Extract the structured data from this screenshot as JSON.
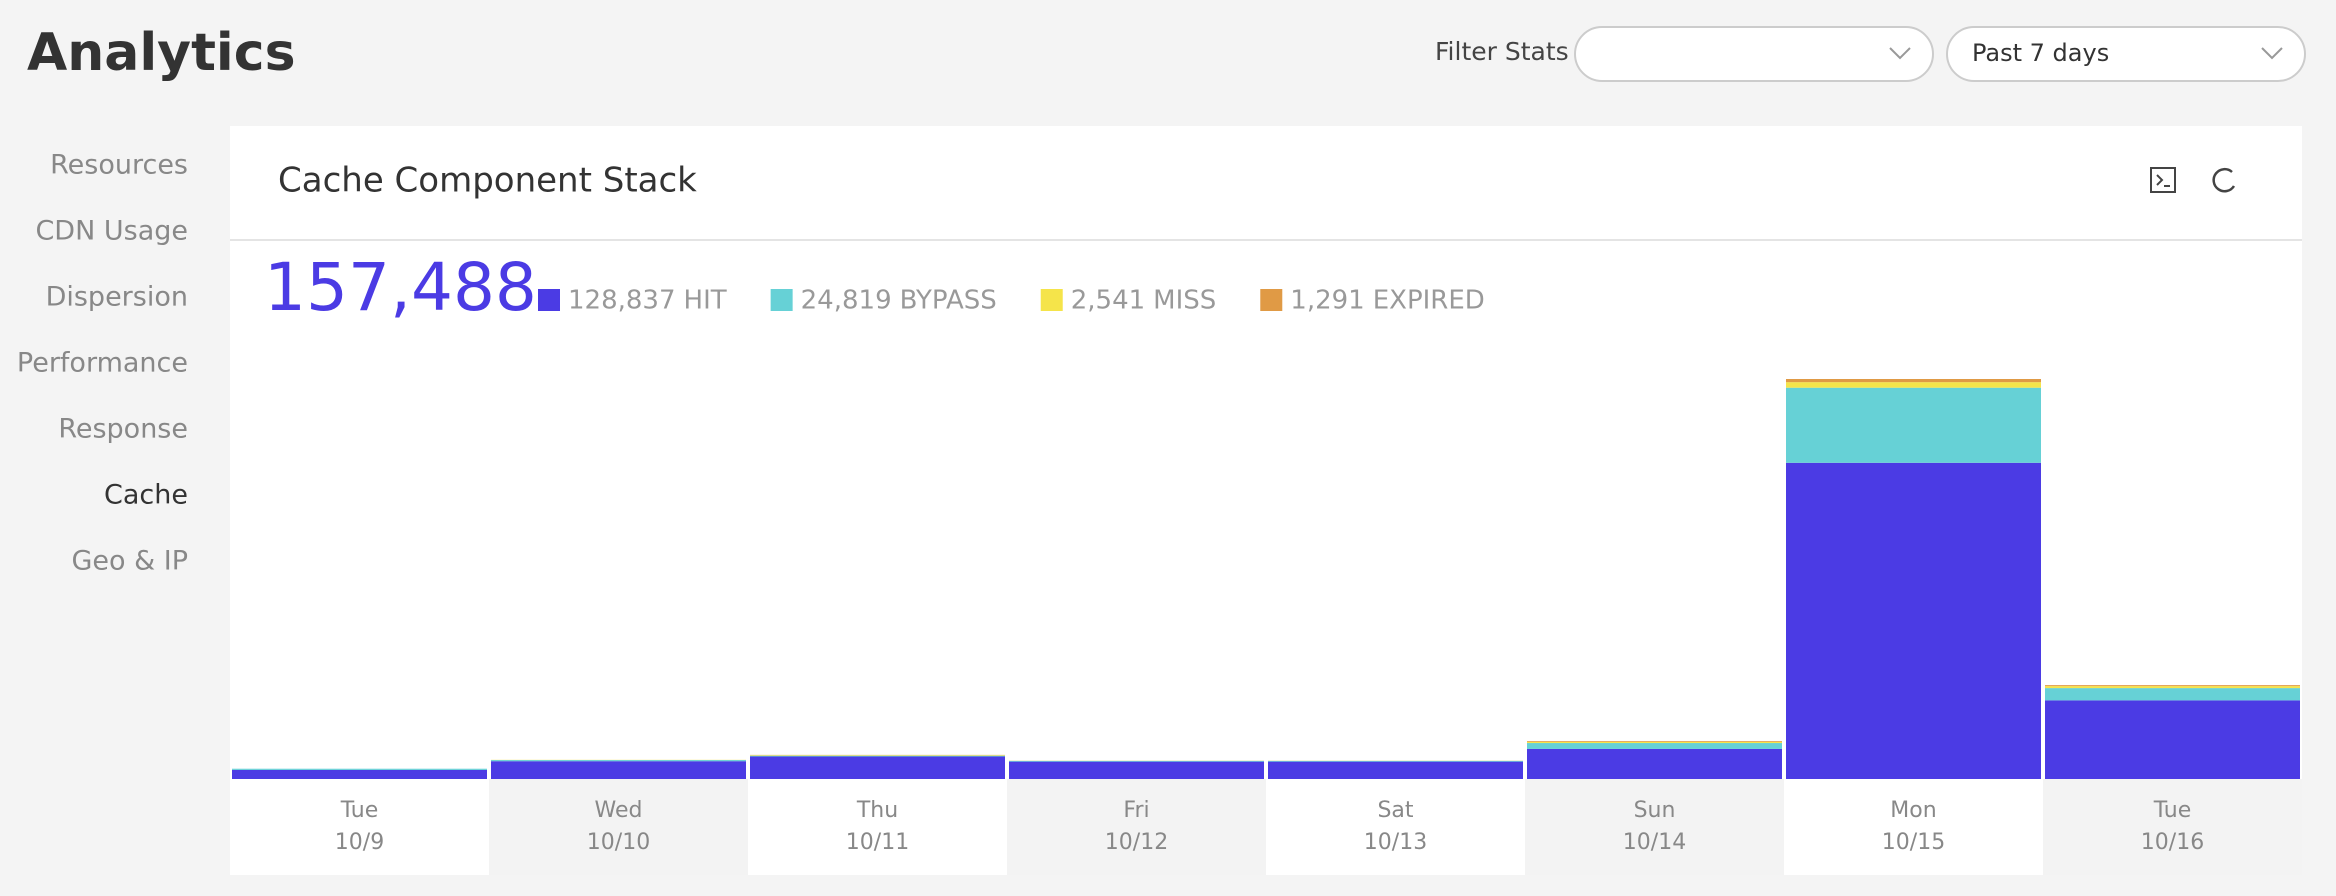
{
  "header": {
    "title": "Analytics",
    "filter_label": "Filter Stats",
    "range_select": "Past 7 days"
  },
  "nav": [
    "Resources",
    "CDN Usage",
    "Dispersion",
    "Performance",
    "Response",
    "Cache",
    "Geo & IP"
  ],
  "panel": {
    "title": "Cache Component Stack",
    "total": "157,488"
  },
  "chart_data": {
    "type": "bar",
    "stacked": true,
    "weekdays": [
      "Tue",
      "Wed",
      "Thu",
      "Fri",
      "Sat",
      "Sun",
      "Mon",
      "Tue"
    ],
    "categories": [
      "10/9",
      "10/10",
      "10/11",
      "10/12",
      "10/13",
      "10/14",
      "10/15",
      "10/16"
    ],
    "series": [
      {
        "name": "HIT",
        "total_label": "128,837",
        "color": "#4b3be4",
        "values": [
          2300,
          4500,
          5700,
          4400,
          4400,
          7600,
          80000,
          19900
        ]
      },
      {
        "name": "BYPASS",
        "total_label": "24,819",
        "color": "#66d1d6",
        "values": [
          300,
          300,
          200,
          200,
          200,
          1500,
          19000,
          3100
        ]
      },
      {
        "name": "MISS",
        "total_label": "2,541",
        "color": "#f5e44a",
        "values": [
          0,
          50,
          150,
          50,
          50,
          300,
          1400,
          500
        ]
      },
      {
        "name": "EXPIRED",
        "total_label": "1,291",
        "color": "#e09a45",
        "values": [
          0,
          0,
          50,
          0,
          0,
          200,
          800,
          250
        ]
      }
    ]
  }
}
